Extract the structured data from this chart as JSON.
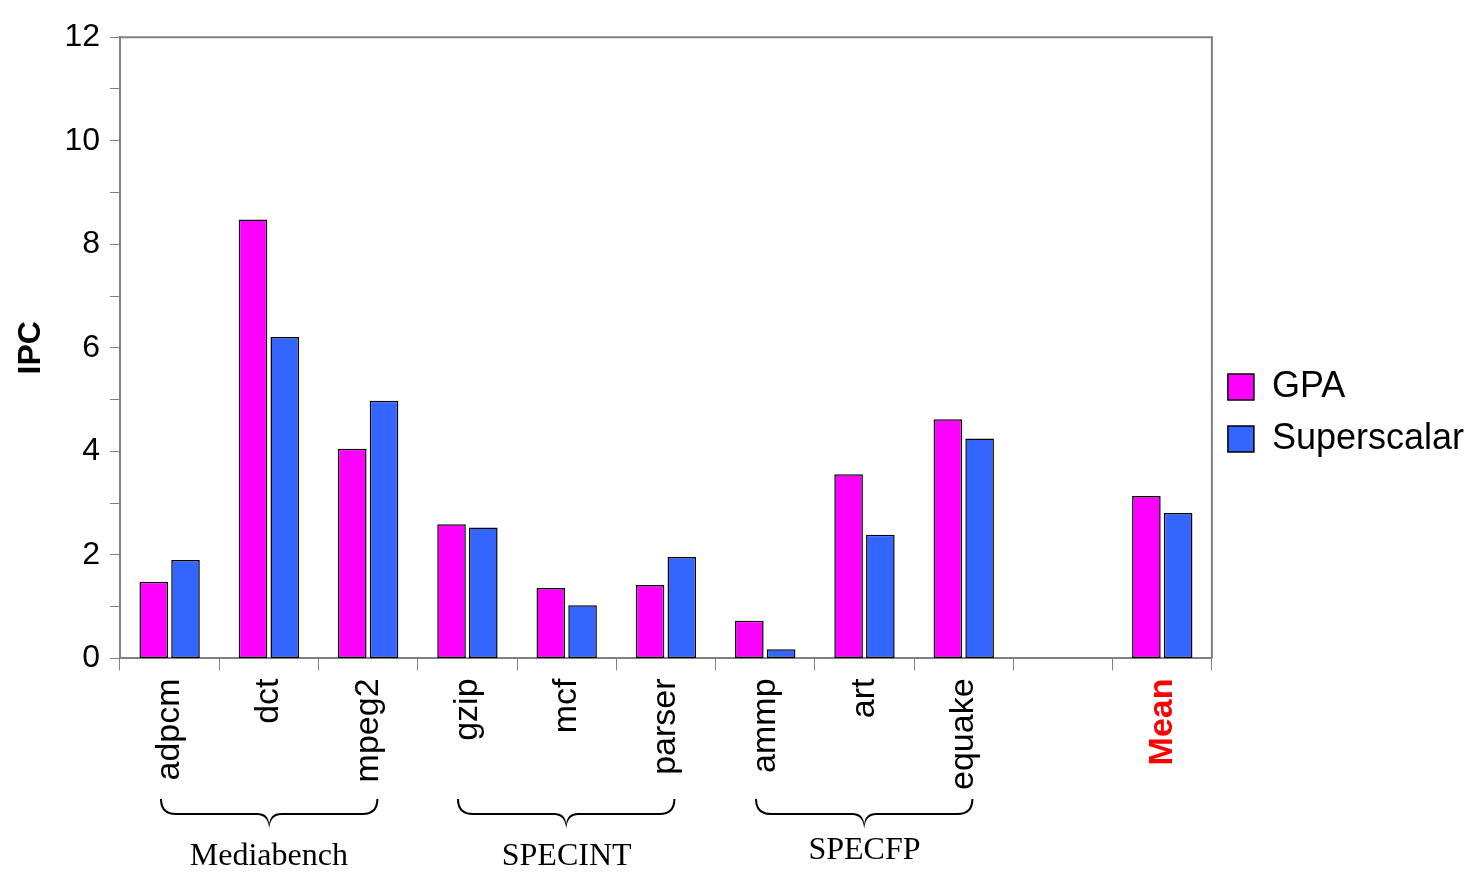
{
  "chart_data": {
    "type": "bar",
    "ylabel": "IPC",
    "categories": [
      "adpcm",
      "dct",
      "mpeg2",
      "gzip",
      "mcf",
      "parser",
      "ammp",
      "art",
      "equake",
      null,
      "Mean"
    ],
    "series": [
      {
        "name": "GPA",
        "color": "#ff00ff",
        "values": [
          1.48,
          8.48,
          4.05,
          2.59,
          1.36,
          1.42,
          0.73,
          3.56,
          4.62,
          null,
          3.14
        ]
      },
      {
        "name": "Superscalar",
        "color": "#3366ff",
        "values": [
          1.9,
          6.21,
          4.98,
          2.53,
          1.03,
          1.96,
          0.18,
          2.39,
          4.25,
          null,
          2.81
        ]
      }
    ],
    "ylim": [
      0,
      12
    ],
    "yticks": [
      0,
      {
        "value": 1,
        "label": null
      },
      2,
      {
        "value": 3,
        "label": null
      },
      4,
      {
        "value": 5,
        "label": null
      },
      6,
      {
        "value": 7,
        "label": null
      },
      8,
      {
        "value": 9,
        "label": null
      },
      10,
      {
        "value": 11,
        "label": null
      },
      12
    ],
    "grid": false,
    "legend": "right",
    "annotations": [
      "Mediabench",
      "SPECINT",
      "SPECFP"
    ]
  }
}
